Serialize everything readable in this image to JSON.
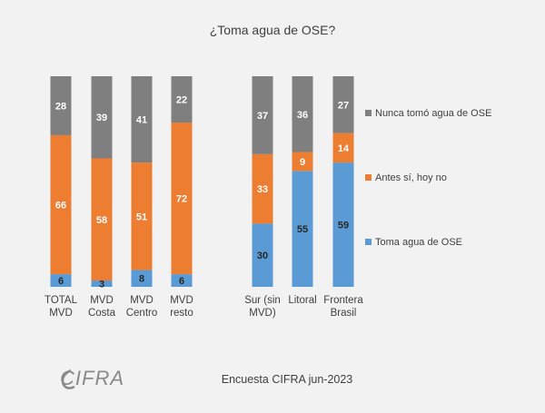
{
  "chart_data": {
    "type": "bar",
    "stacked": true,
    "percent": true,
    "title": "¿Toma agua de OSE?",
    "groups": [
      {
        "categories": [
          [
            "TOTAL",
            "MVD"
          ],
          [
            "MVD",
            "Costa"
          ],
          [
            "MVD",
            "Centro"
          ],
          [
            "MVD",
            "resto"
          ]
        ]
      },
      {
        "categories": [
          [
            "Sur (sin",
            "MVD)"
          ],
          [
            "Litoral"
          ],
          [
            "Frontera",
            "Brasil"
          ]
        ]
      }
    ],
    "categories": [
      "TOTAL MVD",
      "MVD Costa",
      "MVD Centro",
      "MVD resto",
      "Sur (sin MVD)",
      "Litoral",
      "Frontera Brasil"
    ],
    "series": [
      {
        "name": "Toma agua de OSE",
        "color": "#5b9bd5",
        "label_color": "#262626",
        "values": [
          6,
          3,
          8,
          6,
          30,
          55,
          59
        ]
      },
      {
        "name": "Antes sí, hoy no",
        "color": "#ed7d31",
        "label_color": "#ffffff",
        "values": [
          66,
          58,
          51,
          72,
          33,
          9,
          14
        ]
      },
      {
        "name": "Nunca tomó agua de OSE",
        "color": "#7f7f7f",
        "label_color": "#ffffff",
        "values": [
          28,
          39,
          41,
          22,
          37,
          36,
          27
        ]
      }
    ],
    "legend_order": [
      "Nunca tomó agua de OSE",
      "Antes sí, hoy no",
      "Toma agua de OSE"
    ],
    "legend_position": "right",
    "grid": false
  },
  "footer": {
    "source": "Encuesta CIFRA jun-2023",
    "logo": "CIFRA"
  }
}
